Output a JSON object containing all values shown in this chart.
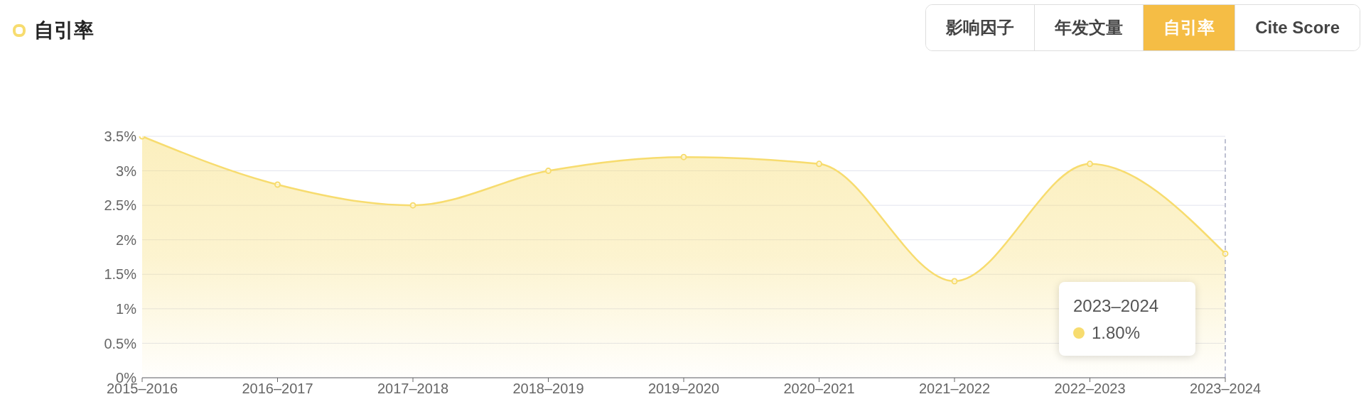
{
  "chart_data": {
    "type": "area",
    "title": "自引率",
    "categories": [
      "2015–2016",
      "2016–2017",
      "2017–2018",
      "2018–2019",
      "2019–2020",
      "2020–2021",
      "2021–2022",
      "2022–2023",
      "2023–2024"
    ],
    "series": [
      {
        "color": "#f7dc6f",
        "values": [
          3.5,
          2.8,
          2.5,
          3.0,
          3.2,
          3.1,
          1.4,
          3.1,
          1.8
        ]
      }
    ],
    "ylim": [
      0,
      3.5
    ],
    "yticks": [
      {
        "value": 0,
        "label": "0%"
      },
      {
        "value": 0.5,
        "label": "0.5%"
      },
      {
        "value": 1,
        "label": "1%"
      },
      {
        "value": 1.5,
        "label": "1.5%"
      },
      {
        "value": 2,
        "label": "2%"
      },
      {
        "value": 2.5,
        "label": "2.5%"
      },
      {
        "value": 3,
        "label": "3%"
      },
      {
        "value": 3.5,
        "label": "3.5%"
      }
    ],
    "grid": "y",
    "marker": "circle",
    "ref_lines": [
      {
        "axis": "x",
        "value": "2023–2024",
        "color": "#a9adc4",
        "line_style": "dashed"
      }
    ],
    "annotations": [
      "影响因子",
      "年发文量",
      "自引率",
      "Cite Score",
      "2023–2024",
      "1.80%"
    ]
  }
}
